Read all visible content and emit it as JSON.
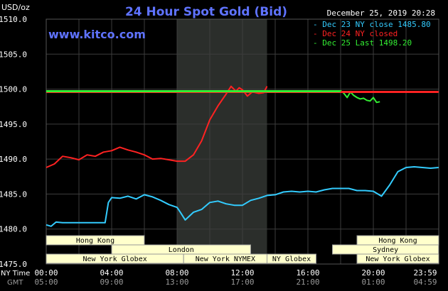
{
  "header": {
    "units": "USD/oz",
    "title": "24 Hour Spot Gold (Bid)",
    "date": "December 25, 2019 20:28",
    "watermark": "www.kitco.com"
  },
  "legend": [
    {
      "text": "- Dec 23 NY close 1485.80",
      "color": "#33ccff"
    },
    {
      "text": "- Dec 24 NY closed",
      "color": "#ff2222"
    },
    {
      "text": "- Dec 25 Last 1498.20",
      "color": "#33ee33"
    }
  ],
  "sessions": {
    "row1": [
      {
        "label": "Hong Kong"
      },
      {
        "label": "Hong Kong"
      }
    ],
    "row2": [
      {
        "label": "London"
      },
      {
        "label": "Sydney"
      }
    ],
    "row3": [
      {
        "label": "New York Globex"
      },
      {
        "label": "New York NYMEX"
      },
      {
        "label": "NY Globex"
      },
      {
        "label": "New York Globex"
      }
    ]
  },
  "time_labels": {
    "ny_time": "NY Time",
    "gmt": "GMT",
    "ny": [
      "00:00",
      "04:00",
      "08:00",
      "12:00",
      "16:00",
      "20:00",
      "23:59"
    ],
    "gmt_values": [
      "05:00",
      "09:00",
      "13:00",
      "17:00",
      "21:00",
      "01:00",
      "04:59"
    ]
  },
  "chart_data": {
    "type": "line",
    "title": "24 Hour Spot Gold (Bid)",
    "ylabel": "USD/oz",
    "xlabel": "NY Time",
    "x_range": [
      0,
      24
    ],
    "ylim": [
      1475,
      1510
    ],
    "yticks": [
      "1475.0",
      "1480.0",
      "1485.0",
      "1490.0",
      "1495.0",
      "1500.0",
      "1505.0",
      "1510.0"
    ],
    "grid": true,
    "legend_position": "top-right",
    "shaded_hours": [
      8.0,
      13.5
    ],
    "series": [
      {
        "name": "Dec 23 NY close 1485.80",
        "color": "#33ccff",
        "x": [
          0,
          0.3,
          0.6,
          1.0,
          1.5,
          2.0,
          2.5,
          3.0,
          3.6,
          3.8,
          4.0,
          4.5,
          5.0,
          5.5,
          6.0,
          6.5,
          7.0,
          7.5,
          8.0,
          8.2,
          8.5,
          9.0,
          9.5,
          10.0,
          10.5,
          11.0,
          11.5,
          12.0,
          12.5,
          13.0,
          13.5,
          14.0,
          14.5,
          15.0,
          15.5,
          16.0,
          16.5,
          17.0,
          17.5,
          18.0,
          18.5,
          19.0,
          19.5,
          20.0,
          20.5,
          21.0,
          21.5,
          22.0,
          22.5,
          23.0,
          23.5,
          23.99
        ],
        "y": [
          1480.6,
          1480.4,
          1481.0,
          1480.9,
          1480.9,
          1480.9,
          1480.9,
          1480.9,
          1480.9,
          1483.8,
          1484.5,
          1484.4,
          1484.7,
          1484.3,
          1484.9,
          1484.6,
          1484.1,
          1483.5,
          1483.1,
          1482.4,
          1481.3,
          1482.4,
          1482.8,
          1483.8,
          1484.0,
          1483.6,
          1483.4,
          1483.4,
          1484.1,
          1484.4,
          1484.8,
          1484.9,
          1485.3,
          1485.4,
          1485.3,
          1485.4,
          1485.3,
          1485.6,
          1485.8,
          1485.8,
          1485.8,
          1485.5,
          1485.5,
          1485.4,
          1484.7,
          1486.3,
          1488.2,
          1488.8,
          1488.9,
          1488.8,
          1488.7,
          1488.8
        ]
      },
      {
        "name": "Dec 24 NY closed",
        "color": "#ff2222",
        "x": [
          0,
          0.5,
          1.0,
          1.5,
          2.0,
          2.5,
          3.0,
          3.5,
          4.0,
          4.5,
          5.0,
          5.5,
          6.0,
          6.5,
          7.0,
          7.5,
          8.0,
          8.5,
          9.0,
          9.5,
          10.0,
          10.5,
          11.0,
          11.3,
          11.6,
          11.8,
          12.0,
          12.3,
          12.6,
          13.0,
          13.3,
          13.5
        ],
        "y": [
          1488.8,
          1489.3,
          1490.4,
          1490.2,
          1489.9,
          1490.6,
          1490.4,
          1491.0,
          1491.2,
          1491.7,
          1491.3,
          1491.0,
          1490.6,
          1490.0,
          1490.1,
          1489.9,
          1489.7,
          1489.7,
          1490.6,
          1492.6,
          1495.6,
          1497.6,
          1499.3,
          1500.4,
          1499.7,
          1500.2,
          1499.9,
          1499.0,
          1499.6,
          1499.4,
          1499.5,
          1500.4
        ]
      },
      {
        "name": "Dec 25 Last 1498.20",
        "color": "#33ee33",
        "x": [
          18.0,
          18.2,
          18.4,
          18.6,
          18.8,
          19.0,
          19.2,
          19.4,
          19.6,
          19.8,
          20.0,
          20.2,
          20.4
        ],
        "y": [
          1499.8,
          1499.4,
          1498.8,
          1499.6,
          1499.1,
          1498.8,
          1498.6,
          1498.7,
          1498.4,
          1498.3,
          1498.8,
          1498.1,
          1498.2
        ]
      },
      {
        "name": "Dec 24 NY closed",
        "color": "#ff2222",
        "x": [
          0,
          23.99
        ],
        "y": [
          1499.6,
          1499.6
        ]
      },
      {
        "name": "Dec 25 Last 1498.20",
        "color": "#33ee33",
        "x": [
          0,
          18.0
        ],
        "y": [
          1499.7,
          1499.7
        ]
      }
    ]
  }
}
